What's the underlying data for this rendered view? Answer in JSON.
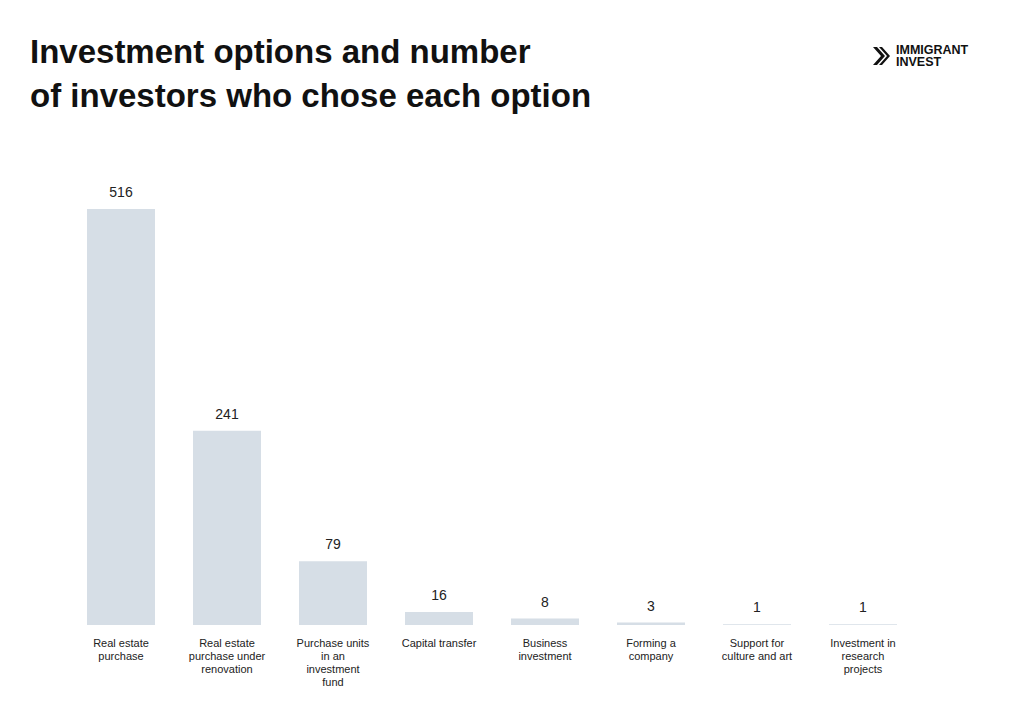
{
  "chart_data": {
    "type": "bar",
    "title": "Investment options and number\nof investors who chose each option",
    "annotations": [
      "IMMIGRANT\nINVEST"
    ],
    "categories": [
      "Real estate purchase",
      "Real estate purchase under renovation",
      "Purchase units in an investment fund",
      "Capital transfer",
      "Business investment",
      "Forming a company",
      "Support for culture and art",
      "Investment in research projects"
    ],
    "values": [
      516,
      241,
      79,
      16,
      8,
      3,
      1,
      1
    ],
    "color": "#d6dee6",
    "data_labels": true,
    "tick_labels": "x",
    "grid": false
  }
}
